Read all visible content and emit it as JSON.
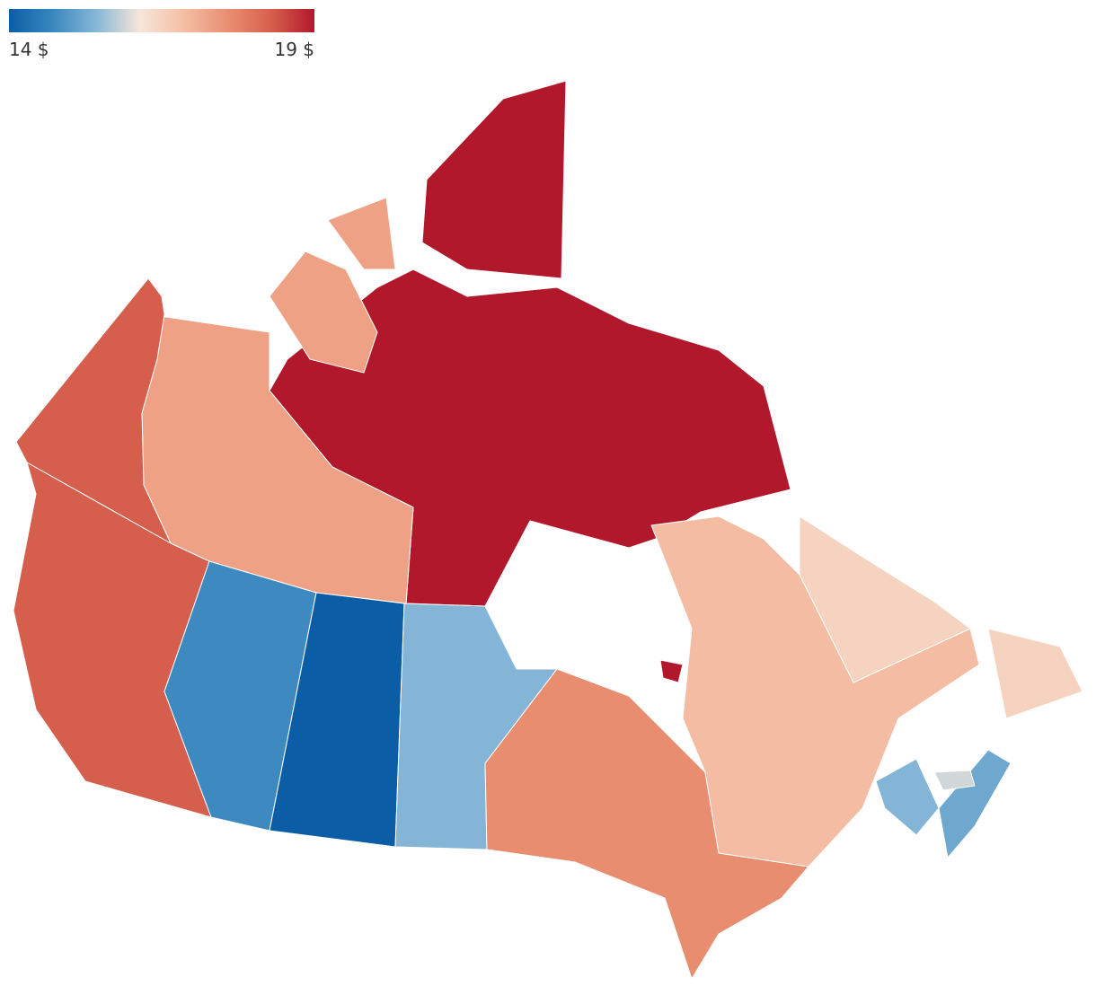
{
  "legend": {
    "ticks": [
      {
        "value": 14,
        "label": "14 $"
      },
      {
        "value": 19,
        "label": "19 $"
      }
    ],
    "colors": [
      "#0b5ea6",
      "#3a87bf",
      "#87b7d7",
      "#f7e6da",
      "#f5bfa5",
      "#ea8f72",
      "#d6604d",
      "#b2182b"
    ]
  },
  "values": [
    19,
    17.3,
    18.3,
    18.3,
    14.75,
    14,
    15.4,
    17.6,
    16.9,
    16.5,
    15.4,
    15.2,
    15.9
  ]
}
